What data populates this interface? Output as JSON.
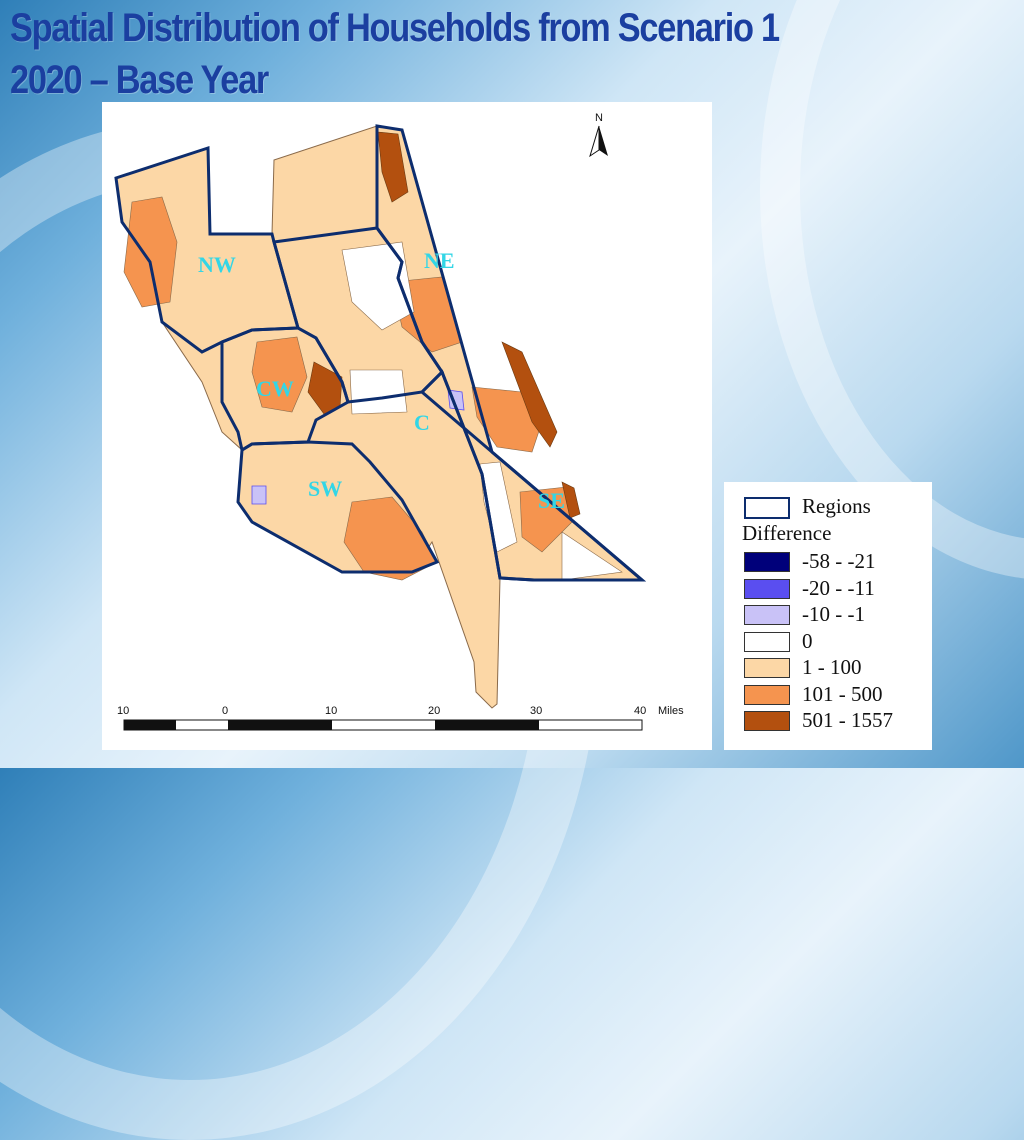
{
  "title": {
    "line1": "Spatial Distribution of Households from Scenario 1",
    "line2": "2020 – Base Year"
  },
  "map": {
    "north_label": "N",
    "region_labels": [
      "NW",
      "NE",
      "CW",
      "C",
      "SW",
      "SE"
    ],
    "scale": {
      "ticks": [
        "10",
        "0",
        "10",
        "20",
        "30",
        "40"
      ],
      "unit": "Miles"
    }
  },
  "legend": {
    "regions_label": "Regions",
    "difference_label": "Difference",
    "classes": [
      {
        "label": "-58 - -21",
        "color": "#00007a"
      },
      {
        "label": "-20 - -11",
        "color": "#5a4ef0"
      },
      {
        "label": "-10 - -1",
        "color": "#c9c2f7"
      },
      {
        "label": "0",
        "color": "#ffffff"
      },
      {
        "label": "1 - 100",
        "color": "#fcd7a6"
      },
      {
        "label": "101 - 500",
        "color": "#f5944f"
      },
      {
        "label": "501 - 1557",
        "color": "#b3500f"
      }
    ],
    "region_outline_color": "#0d2d6e"
  }
}
